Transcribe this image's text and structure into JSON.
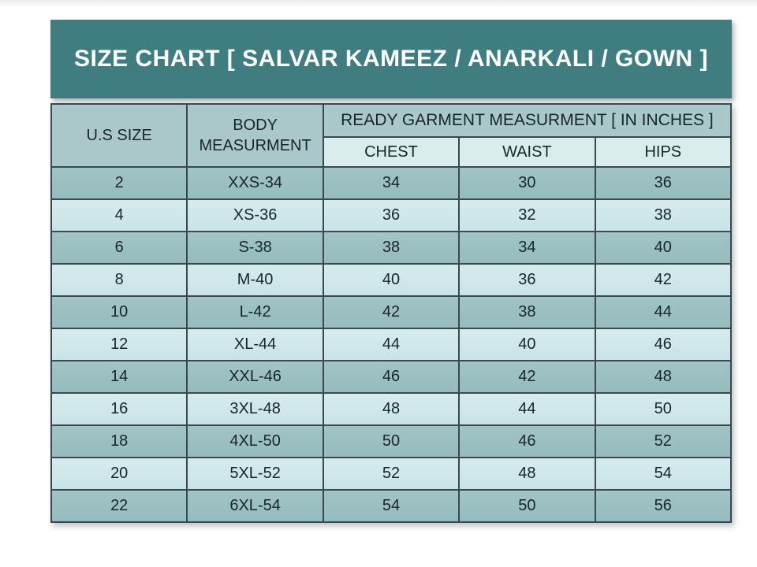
{
  "banner": {
    "title": "SIZE CHART [ SALVAR KAMEEZ / ANARKALI / GOWN ]"
  },
  "table": {
    "col1_header": "U.S SIZE",
    "col2_header": "BODY MEASURMENT",
    "group_header": "READY GARMENT MEASURMENT [ IN INCHES ]",
    "sub_headers": [
      "CHEST",
      "WAIST",
      "HIPS"
    ],
    "rows": [
      {
        "us_size": "2",
        "body": "XXS-34",
        "chest": "34",
        "waist": "30",
        "hips": "36"
      },
      {
        "us_size": "4",
        "body": "XS-36",
        "chest": "36",
        "waist": "32",
        "hips": "38"
      },
      {
        "us_size": "6",
        "body": "S-38",
        "chest": "38",
        "waist": "34",
        "hips": "40"
      },
      {
        "us_size": "8",
        "body": "M-40",
        "chest": "40",
        "waist": "36",
        "hips": "42"
      },
      {
        "us_size": "10",
        "body": "L-42",
        "chest": "42",
        "waist": "38",
        "hips": "44"
      },
      {
        "us_size": "12",
        "body": "XL-44",
        "chest": "44",
        "waist": "40",
        "hips": "46"
      },
      {
        "us_size": "14",
        "body": "XXL-46",
        "chest": "46",
        "waist": "42",
        "hips": "48"
      },
      {
        "us_size": "16",
        "body": "3XL-48",
        "chest": "48",
        "waist": "44",
        "hips": "50"
      },
      {
        "us_size": "18",
        "body": "4XL-50",
        "chest": "50",
        "waist": "46",
        "hips": "52"
      },
      {
        "us_size": "20",
        "body": "5XL-52",
        "chest": "52",
        "waist": "48",
        "hips": "54"
      },
      {
        "us_size": "22",
        "body": "6XL-54",
        "chest": "54",
        "waist": "50",
        "hips": "56"
      }
    ]
  },
  "colors": {
    "banner_bg": "#3f7d81",
    "banner_text": "#ffffff",
    "header_bg": "#aac7c9",
    "subheader_bg": "#dbeced",
    "row_dark": "#9abfc1",
    "row_light": "#cfe7e9",
    "border": "#39494f",
    "cell_text": "#17262b",
    "page_bg": "#ffffff"
  }
}
